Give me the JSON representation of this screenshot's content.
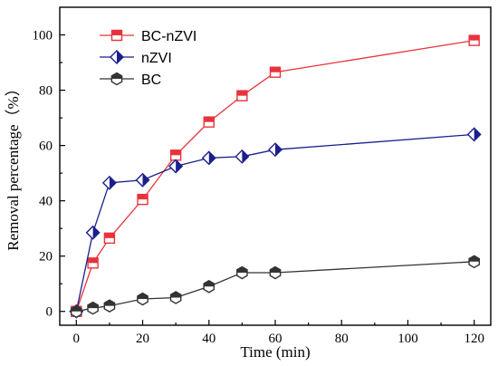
{
  "chart_data": {
    "type": "line",
    "xlabel": "Time (min)",
    "ylabel": "Removal percentage（%）",
    "xlim": [
      -5,
      125
    ],
    "ylim": [
      -5,
      110
    ],
    "x_ticks": [
      0,
      20,
      40,
      60,
      80,
      100,
      120
    ],
    "y_ticks": [
      0,
      20,
      40,
      60,
      80,
      100
    ],
    "x_tick_labels": [
      "0",
      "20",
      "40",
      "60",
      "80",
      "100",
      "120"
    ],
    "y_tick_labels": [
      "0",
      "20",
      "40",
      "60",
      "80",
      "100"
    ],
    "legend_position": "top-left",
    "grid": false,
    "series": [
      {
        "name": "BC-nZVI",
        "color": "#e8333c",
        "marker": "square-half",
        "x": [
          0,
          5,
          10,
          20,
          30,
          40,
          50,
          60,
          120
        ],
        "y": [
          0,
          17.5,
          26.5,
          40.5,
          56.5,
          68.5,
          78,
          86.5,
          98
        ]
      },
      {
        "name": "nZVI",
        "color": "#1a1f8c",
        "marker": "diamond-half",
        "x": [
          0,
          5,
          10,
          20,
          30,
          40,
          50,
          60,
          120
        ],
        "y": [
          0,
          28.5,
          46.5,
          47.5,
          52.5,
          55.5,
          56,
          58.5,
          64
        ]
      },
      {
        "name": "BC",
        "color": "#333333",
        "marker": "hexagon-half",
        "x": [
          0,
          5,
          10,
          20,
          30,
          40,
          50,
          60,
          120
        ],
        "y": [
          0,
          1.2,
          2,
          4.5,
          5,
          9,
          14,
          14,
          18
        ]
      }
    ]
  }
}
